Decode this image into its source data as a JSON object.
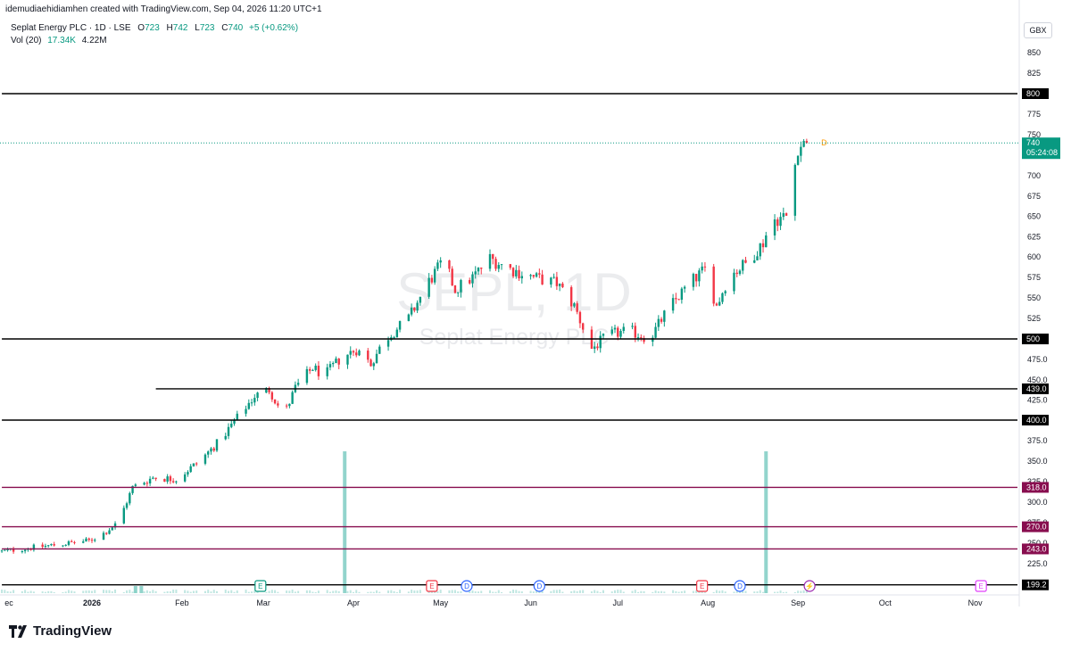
{
  "header": {
    "attribution": "idemudiaehidiamhen created with TradingView.com, Sep 04, 2026 11:20 UTC+1"
  },
  "legend": {
    "symbol": "Seplat Energy PLC · 1D · LSE",
    "o_label": "O",
    "o_value": "723",
    "h_label": "H",
    "h_value": "742",
    "l_label": "L",
    "l_value": "723",
    "c_label": "C",
    "c_value": "740",
    "change": "+5 (+0.62%)",
    "vol_label": "Vol (20)",
    "vol_value1": "17.34K",
    "vol_value2": "4.22M"
  },
  "currency": "GBX",
  "watermark": {
    "symbol": "SEPL, 1D",
    "name": "Seplat Energy PLC"
  },
  "brand": "TradingView",
  "colors": {
    "up": "#089981",
    "down": "#f23645",
    "volume": "#7fcdc3",
    "hline_black": "#000000",
    "hline_purple": "#880e4f",
    "text": "#131722"
  },
  "chart_data": {
    "type": "candlestick",
    "y_ticks": [
      "850",
      "825",
      "775",
      "750",
      "700",
      "675",
      "650",
      "625",
      "600",
      "575",
      "550",
      "525",
      "475.0",
      "450.0",
      "425.0",
      "375.0",
      "350.0",
      "325.0",
      "300.0",
      "275.0",
      "250.0",
      "225.0"
    ],
    "x_labels": [
      "ec",
      "2026",
      "Feb",
      "Mar",
      "Apr",
      "May",
      "Jun",
      "Jul",
      "Aug",
      "Sep",
      "Oct",
      "Nov"
    ],
    "x_label_dates": [
      "2025-12-31",
      "2026-01-01",
      "2026-02-01",
      "2026-03-01",
      "2026-04-01",
      "2026-05-01",
      "2026-06-01",
      "2026-07-01",
      "2026-08-01",
      "2026-09-01",
      "2026-10-01",
      "2026-11-01"
    ],
    "horizontal_lines": [
      {
        "label": "800",
        "value": 800,
        "color": "black",
        "start_date": "2025-12-01"
      },
      {
        "label": "500",
        "value": 500,
        "color": "black",
        "start_date": "2025-12-01"
      },
      {
        "label": "439.0",
        "value": 439,
        "color": "black",
        "start_date": "2026-01-23"
      },
      {
        "label": "400.0",
        "value": 400,
        "color": "black",
        "start_date": "2025-12-01"
      },
      {
        "label": "318.0",
        "value": 318,
        "color": "purple",
        "start_date": "2025-12-01"
      },
      {
        "label": "270.0",
        "value": 270,
        "color": "purple",
        "start_date": "2025-12-01"
      },
      {
        "label": "243.0",
        "value": 243,
        "color": "purple",
        "start_date": "2025-12-01"
      },
      {
        "label": "199.2",
        "value": 199.2,
        "color": "black",
        "start_date": "2025-12-01"
      }
    ],
    "last_price": {
      "value": 740,
      "label": "740",
      "countdown": "05:24:08"
    },
    "events": [
      {
        "date": "2026-02-28",
        "letter": "E",
        "kind": "earnings-past"
      },
      {
        "date": "2026-04-28",
        "letter": "E",
        "kind": "earnings-red"
      },
      {
        "date": "2026-05-10",
        "letter": "D",
        "kind": "dividend"
      },
      {
        "date": "2026-06-04",
        "letter": "D",
        "kind": "dividend"
      },
      {
        "date": "2026-07-30",
        "letter": "E",
        "kind": "earnings-red"
      },
      {
        "date": "2026-08-12",
        "letter": "D",
        "kind": "dividend"
      },
      {
        "date": "2026-09-05",
        "letter": "⚡",
        "kind": "split"
      },
      {
        "date": "2026-11-03",
        "letter": "E",
        "kind": "earnings-future"
      }
    ],
    "next_event_marker": {
      "date": "2026-09-10",
      "letter": "D",
      "price": 740
    },
    "anchors": [
      [
        "2025-12-01",
        240
      ],
      [
        "2025-12-31",
        253
      ],
      [
        "2026-01-05",
        262
      ],
      [
        "2026-01-10",
        275
      ],
      [
        "2026-01-15",
        318
      ],
      [
        "2026-01-22",
        330
      ],
      [
        "2026-01-30",
        328
      ],
      [
        "2026-02-07",
        350
      ],
      [
        "2026-02-14",
        375
      ],
      [
        "2026-02-20",
        403
      ],
      [
        "2026-02-26",
        430
      ],
      [
        "2026-03-03",
        438
      ],
      [
        "2026-03-08",
        405
      ],
      [
        "2026-03-12",
        440
      ],
      [
        "2026-03-18",
        465
      ],
      [
        "2026-03-22",
        455
      ],
      [
        "2026-03-28",
        478
      ],
      [
        "2026-04-02",
        487
      ],
      [
        "2026-04-07",
        470
      ],
      [
        "2026-04-12",
        500
      ],
      [
        "2026-04-20",
        525
      ],
      [
        "2026-04-27",
        570
      ],
      [
        "2026-05-02",
        595
      ],
      [
        "2026-05-06",
        560
      ],
      [
        "2026-05-12",
        575
      ],
      [
        "2026-05-18",
        598
      ],
      [
        "2026-05-25",
        585
      ],
      [
        "2026-06-02",
        575
      ],
      [
        "2026-06-10",
        568
      ],
      [
        "2026-06-16",
        540
      ],
      [
        "2026-06-22",
        488
      ],
      [
        "2026-06-28",
        505
      ],
      [
        "2026-07-05",
        510
      ],
      [
        "2026-07-12",
        500
      ],
      [
        "2026-07-18",
        535
      ],
      [
        "2026-07-25",
        565
      ],
      [
        "2026-07-31",
        585
      ],
      [
        "2026-08-04",
        540
      ],
      [
        "2026-08-08",
        575
      ],
      [
        "2026-08-15",
        595
      ],
      [
        "2026-08-20",
        618
      ],
      [
        "2026-08-23",
        645
      ],
      [
        "2026-08-28",
        650
      ],
      [
        "2026-09-01",
        735
      ],
      [
        "2026-09-04",
        740
      ]
    ],
    "volume_spikes": [
      {
        "date": "2026-03-29",
        "volume_pct": 60
      },
      {
        "date": "2026-08-21",
        "volume_pct": 60
      },
      {
        "date": "2026-01-16",
        "volume_pct": 3
      },
      {
        "date": "2026-01-18",
        "volume_pct": 3
      }
    ]
  }
}
